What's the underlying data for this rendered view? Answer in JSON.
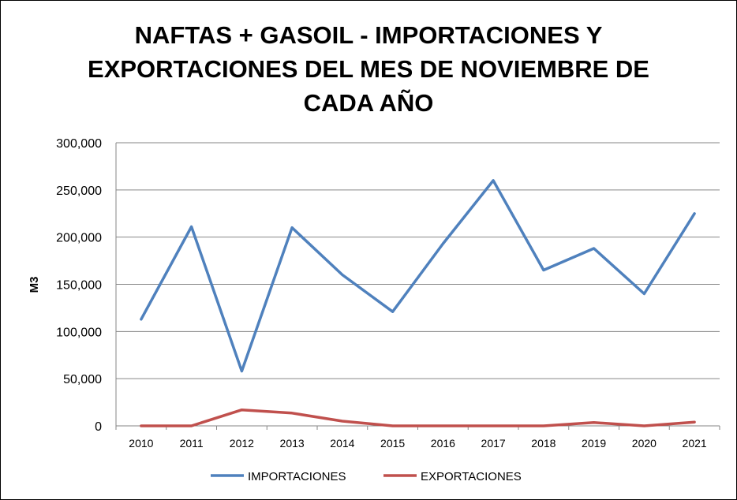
{
  "chart_data": {
    "type": "line",
    "title": "NAFTAS + GASOIL - IMPORTACIONES Y EXPORTACIONES DEL MES DE NOVIEMBRE DE CADA AÑO",
    "title_lines": [
      "NAFTAS + GASOIL - IMPORTACIONES Y",
      "EXPORTACIONES DEL MES DE NOVIEMBRE DE",
      "CADA AÑO"
    ],
    "xlabel": "",
    "ylabel": "M3",
    "categories": [
      "2010",
      "2011",
      "2012",
      "2013",
      "2014",
      "2015",
      "2016",
      "2017",
      "2018",
      "2019",
      "2020",
      "2021"
    ],
    "ylim": [
      0,
      300000
    ],
    "yticks": [
      0,
      50000,
      100000,
      150000,
      200000,
      250000,
      300000
    ],
    "ytick_labels": [
      "0",
      "50,000",
      "100,000",
      "150,000",
      "200,000",
      "250,000",
      "300,000"
    ],
    "grid": true,
    "legend_position": "bottom",
    "series": [
      {
        "name": "IMPORTACIONES",
        "color": "#4F81BD",
        "values": [
          113000,
          211000,
          58000,
          210000,
          160000,
          121000,
          193000,
          260000,
          165000,
          188000,
          140000,
          225000
        ]
      },
      {
        "name": "EXPORTACIONES",
        "color": "#C0504D",
        "values": [
          0,
          0,
          17000,
          13500,
          5000,
          0,
          0,
          0,
          0,
          3500,
          0,
          4000
        ]
      }
    ]
  }
}
